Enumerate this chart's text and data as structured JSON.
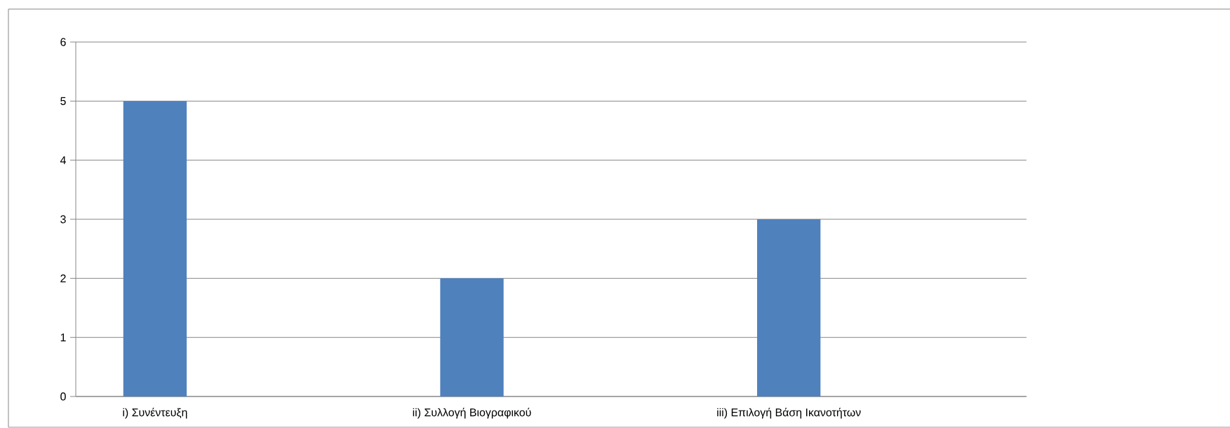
{
  "chart_data": {
    "type": "bar",
    "categories": [
      "i) Συνέντευξη",
      null,
      "ii) Συλλογή Βιογραφικού",
      null,
      "iii) Επιλογή Βάση Ικανοτήτων",
      null
    ],
    "values": [
      5,
      null,
      2,
      null,
      3,
      null
    ],
    "color": "#4f81bd",
    "ylim": [
      0,
      6
    ],
    "yticks": [
      0,
      1,
      2,
      3,
      4,
      5,
      6
    ],
    "grid": "y"
  }
}
